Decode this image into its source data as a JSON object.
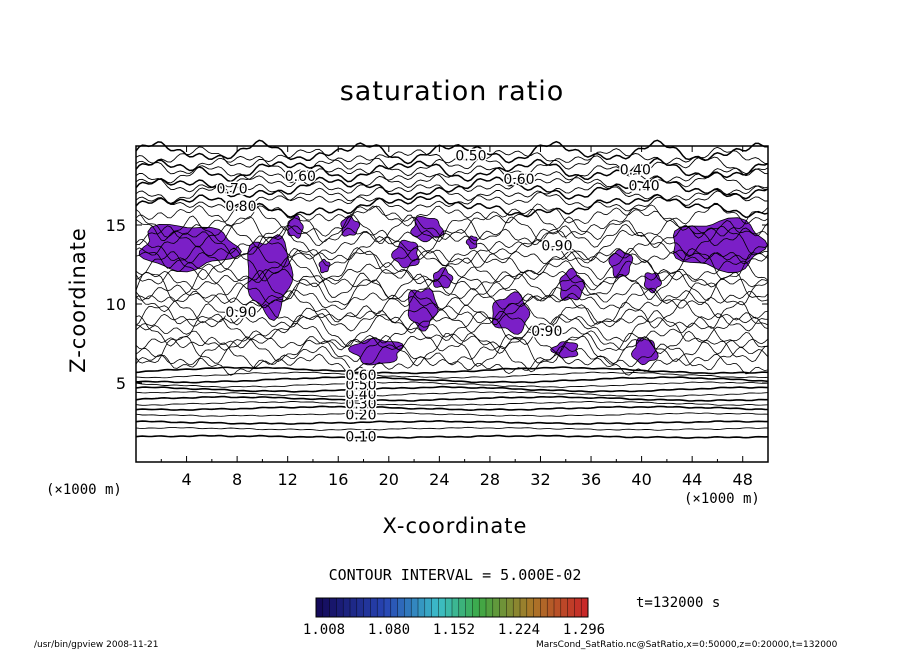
{
  "chart_data": {
    "type": "heatmap",
    "title": "saturation ratio",
    "xlabel": "X-coordinate",
    "ylabel": "Z-coordinate",
    "x_unit": "(×1000 m)",
    "y_unit": "(×1000 m)",
    "xlim": [
      0,
      50
    ],
    "ylim": [
      0,
      20
    ],
    "x_ticks": [
      4,
      8,
      12,
      16,
      20,
      24,
      28,
      32,
      36,
      40,
      44,
      48
    ],
    "y_ticks": [
      5,
      10,
      15
    ],
    "contour_labels": [
      {
        "text": "0.10",
        "x": 17.8,
        "y": 1.6
      },
      {
        "text": "0.20",
        "x": 17.8,
        "y": 3.0
      },
      {
        "text": "0.30",
        "x": 17.8,
        "y": 3.7
      },
      {
        "text": "0.40",
        "x": 17.8,
        "y": 4.3
      },
      {
        "text": "0.50",
        "x": 17.8,
        "y": 4.9
      },
      {
        "text": "0.60",
        "x": 17.8,
        "y": 5.5
      },
      {
        "text": "0.50",
        "x": 26.5,
        "y": 19.4
      },
      {
        "text": "0.60",
        "x": 13,
        "y": 18.1
      },
      {
        "text": "0.60",
        "x": 30.3,
        "y": 17.9
      },
      {
        "text": "0.40",
        "x": 39.5,
        "y": 18.5
      },
      {
        "text": "0.40",
        "x": 40.2,
        "y": 17.5
      },
      {
        "text": "0.70",
        "x": 7.6,
        "y": 17.3
      },
      {
        "text": "0.80",
        "x": 8.3,
        "y": 16.2
      },
      {
        "text": "0.90",
        "x": 33.3,
        "y": 13.7
      },
      {
        "text": "0.90",
        "x": 32.5,
        "y": 8.3
      },
      {
        "text": "0.90",
        "x": 8.3,
        "y": 9.5
      }
    ],
    "supersaturated_regions": "purple shaded areas where saturation ratio exceeds 1.0",
    "contour_interval": "CONTOUR INTERVAL = 5.000E-02",
    "time": "t=132000 s",
    "colorbar": {
      "ticks": [
        "1.008",
        "1.080",
        "1.152",
        "1.224",
        "1.296"
      ],
      "min": 1.008,
      "max": 1.296
    },
    "colors": {
      "shade": "#7b1fc7",
      "line": "#000000"
    }
  },
  "footer": {
    "left": "/usr/bin/gpview   2008-11-21",
    "right": "MarsCond_SatRatio.nc@SatRatio,x=0:50000,z=0:20000,t=132000"
  }
}
